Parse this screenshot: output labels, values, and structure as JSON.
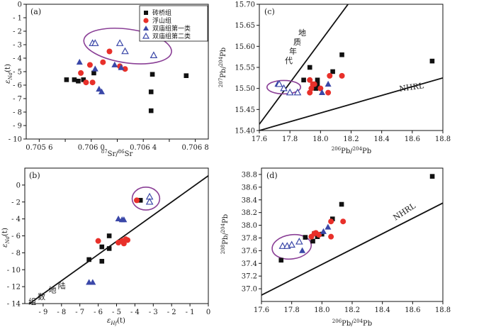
{
  "legend": {
    "items": [
      {
        "key": "zhuanqiao",
        "label": "砖桥组",
        "marker": "filled-square",
        "color": "#111111"
      },
      {
        "key": "fushan",
        "label": "浮山组",
        "marker": "filled-circle",
        "color": "#e8302a"
      },
      {
        "key": "sm1",
        "label": "双庙组第一类",
        "marker": "filled-triangle",
        "color": "#3a47a8"
      },
      {
        "key": "sm2",
        "label": "双庙组第二类",
        "marker": "open-triangle",
        "color": "#3a47a8"
      }
    ]
  },
  "chart_data": [
    {
      "id": "a",
      "type": "scatter",
      "panel_label": "(a)",
      "xlabel": "87Sr/86Sr",
      "xlabel_parts": {
        "sup1": "87",
        "base1": "Sr/",
        "sup2": "86",
        "base2": "Sr"
      },
      "ylabel": "ε",
      "ylabel_suffix": "(t)",
      "xlim": [
        0.7055,
        0.7069
      ],
      "ylim": [
        -10,
        0
      ],
      "xticks": [
        0.7056,
        0.7058,
        0.706,
        0.7062,
        0.7064,
        0.7066,
        0.7068
      ],
      "xtick_labels": [
        "0.705 6",
        "",
        "0.706 0",
        "",
        "0.706 4",
        "",
        "0.706 8"
      ],
      "yticks": [
        0,
        -1,
        -2,
        -3,
        -4,
        -5,
        -6,
        -7,
        -8,
        -9,
        -10
      ],
      "ytick_labels": [
        "0",
        "- 1",
        "- 2",
        "- 3",
        "- 4",
        "- 5",
        "- 6",
        "- 7",
        "- 8",
        "- 9",
        "- 10"
      ],
      "series": [
        {
          "name": "砖桥组",
          "marker": "filled-square",
          "points": [
            [
              0.70581,
              -5.6
            ],
            [
              0.70587,
              -5.6
            ],
            [
              0.7059,
              -5.7
            ],
            [
              0.70594,
              -5.6
            ],
            [
              0.70602,
              -5.1
            ],
            [
              0.70646,
              -6.5
            ],
            [
              0.70647,
              -5.2
            ],
            [
              0.70646,
              -7.9
            ],
            [
              0.70673,
              -5.3
            ]
          ]
        },
        {
          "name": "浮山组",
          "marker": "filled-circle",
          "points": [
            [
              0.70592,
              -5.1
            ],
            [
              0.70596,
              -5.8
            ],
            [
              0.70599,
              -4.5
            ],
            [
              0.70601,
              -5.8
            ],
            [
              0.70609,
              -4.3
            ],
            [
              0.70614,
              -3.5
            ],
            [
              0.70622,
              -4.6
            ],
            [
              0.70626,
              -4.8
            ]
          ]
        },
        {
          "name": "双庙组第一类",
          "marker": "filled-triangle",
          "points": [
            [
              0.70591,
              -4.3
            ],
            [
              0.70603,
              -4.8
            ],
            [
              0.70606,
              -6.3
            ],
            [
              0.70608,
              -6.5
            ],
            [
              0.70618,
              -4.5
            ],
            [
              0.70623,
              -4.7
            ]
          ]
        },
        {
          "name": "双庙组第二类",
          "marker": "open-triangle",
          "points": [
            [
              0.70601,
              -2.9
            ],
            [
              0.70603,
              -2.9
            ],
            [
              0.70622,
              -2.9
            ],
            [
              0.70626,
              -3.5
            ],
            [
              0.70648,
              -3.8
            ]
          ]
        }
      ],
      "highlight_ellipse": {
        "cx": 0.70628,
        "cy": -3.1,
        "rx": 0.00034,
        "ry": 1.25,
        "rotate_deg": 8
      }
    },
    {
      "id": "c",
      "type": "scatter",
      "panel_label": "(c)",
      "xlabel": "206Pb/204Pb",
      "xlabel_parts": {
        "sup1": "206",
        "base1": "Pb/",
        "sup2": "204",
        "base2": "Pb"
      },
      "ylabel": "207Pb/204Pb",
      "ylabel_parts": {
        "sup1": "207",
        "base1": "Pb/",
        "sup2": "204",
        "base2": "Pb"
      },
      "xlim": [
        17.6,
        18.8
      ],
      "ylim": [
        15.4,
        15.7
      ],
      "xticks": [
        17.6,
        17.8,
        18.0,
        18.2,
        18.4,
        18.6,
        18.8
      ],
      "xtick_labels": [
        "17.6",
        "17.8",
        "18.0",
        "18.2",
        "18.4",
        "18.6",
        "18.8"
      ],
      "yticks": [
        15.4,
        15.45,
        15.5,
        15.55,
        15.6,
        15.65,
        15.7
      ],
      "ytick_labels": [
        "15.40",
        "15.45",
        "15.50",
        "15.55",
        "15.60",
        "15.65",
        "15.70"
      ],
      "series": [
        {
          "name": "砖桥组",
          "marker": "filled-square",
          "points": [
            [
              17.89,
              15.52
            ],
            [
              17.93,
              15.55
            ],
            [
              17.97,
              15.5
            ],
            [
              17.98,
              15.51
            ],
            [
              17.98,
              15.52
            ],
            [
              18.08,
              15.54
            ],
            [
              18.14,
              15.58
            ],
            [
              18.73,
              15.565
            ]
          ]
        },
        {
          "name": "浮山组",
          "marker": "filled-circle",
          "points": [
            [
              17.93,
              15.49
            ],
            [
              17.94,
              15.5
            ],
            [
              17.95,
              15.51
            ],
            [
              17.96,
              15.51
            ],
            [
              18.0,
              15.5
            ],
            [
              18.05,
              15.49
            ],
            [
              18.06,
              15.53
            ],
            [
              18.14,
              15.53
            ],
            [
              17.93,
              15.52
            ]
          ]
        },
        {
          "name": "双庙组第一类",
          "marker": "filled-triangle",
          "points": [
            [
              17.72,
              15.51
            ],
            [
              18.01,
              15.49
            ],
            [
              18.05,
              15.51
            ]
          ]
        },
        {
          "name": "双庙组第二类",
          "marker": "open-triangle",
          "points": [
            [
              17.73,
              15.51
            ],
            [
              17.76,
              15.5
            ],
            [
              17.8,
              15.49
            ],
            [
              17.85,
              15.49
            ]
          ]
        }
      ],
      "reference_lines": [
        {
          "label": "地质年代",
          "p1": [
            17.6,
            15.415
          ],
          "p2": [
            18.18,
            15.7
          ]
        },
        {
          "label": "NHRL",
          "p1": [
            17.6,
            15.4
          ],
          "p2": [
            18.8,
            15.525
          ]
        }
      ],
      "highlight_ellipse": {
        "cx": 17.76,
        "cy": 15.503,
        "rx": 0.11,
        "ry": 0.016,
        "rotate_deg": 0
      }
    },
    {
      "id": "b",
      "type": "scatter",
      "panel_label": "(b)",
      "xlabel": "ε",
      "xlabel_suffix": "(t)",
      "ylabel": "ε",
      "ylabel_suffix": "(t)",
      "xlim": [
        -10,
        0
      ],
      "ylim": [
        -14,
        2
      ],
      "xticks": [
        -9,
        -8,
        -7,
        -6,
        -5,
        -4,
        -3,
        -2,
        -1,
        0
      ],
      "xtick_labels": [
        "- 9",
        "- 8",
        "- 7",
        "- 6",
        "- 5",
        "- 4",
        "- 3",
        "- 2",
        "- 1",
        "0"
      ],
      "yticks": [
        0,
        -2,
        -4,
        -6,
        -8,
        -10,
        -12,
        -14
      ],
      "ytick_labels": [
        "0",
        "- 2",
        "- 4",
        "- 6",
        "- 8",
        "- 10",
        "- 12",
        "- 14"
      ],
      "series": [
        {
          "name": "砖桥组",
          "marker": "filled-square",
          "points": [
            [
              -6.5,
              -8.8
            ],
            [
              -5.8,
              -9
            ],
            [
              -5.8,
              -7.3
            ],
            [
              -5.4,
              -7.5
            ],
            [
              -5.4,
              -6
            ],
            [
              -3.7,
              -1.8
            ]
          ]
        },
        {
          "name": "浮山组",
          "marker": "filled-circle",
          "points": [
            [
              -6,
              -6.6
            ],
            [
              -4.9,
              -6.8
            ],
            [
              -4.7,
              -6.6
            ],
            [
              -4.6,
              -6.9
            ],
            [
              -4.5,
              -6.4
            ],
            [
              -4.4,
              -6.5
            ],
            [
              -3.9,
              -1.8
            ]
          ]
        },
        {
          "name": "双庙组第一类",
          "marker": "filled-triangle",
          "points": [
            [
              -6.5,
              -11.5
            ],
            [
              -6.3,
              -11.5
            ],
            [
              -4.9,
              -4
            ],
            [
              -4.7,
              -4.1
            ],
            [
              -4.6,
              -4.1
            ]
          ]
        },
        {
          "name": "双庙组第二类",
          "marker": "open-triangle",
          "points": [
            [
              -3.2,
              -1.4
            ],
            [
              -3.2,
              -2
            ]
          ]
        }
      ],
      "reference_lines": [
        {
          "label": "陆地地幔组数",
          "p1": [
            -10,
            -14.4
          ],
          "p2": [
            0,
            1.1
          ]
        }
      ],
      "annotations": [
        {
          "text": "陆",
          "x": -8.2,
          "y": -12.2
        },
        {
          "text": "地",
          "x": -8.7,
          "y": -12.7
        },
        {
          "text": "数",
          "x": -9.3,
          "y": -13.5
        },
        {
          "text": "组",
          "x": -9.8,
          "y": -14.1
        }
      ],
      "highlight_ellipse": {
        "cx": -3.4,
        "cy": -1.6,
        "rx": 0.75,
        "ry": 1.35,
        "rotate_deg": 0
      }
    },
    {
      "id": "d",
      "type": "scatter",
      "panel_label": "(d)",
      "xlabel": "206Pb/204Pb",
      "xlabel_parts": {
        "sup1": "206",
        "base1": "Pb/",
        "sup2": "204",
        "base2": "Pb"
      },
      "ylabel": "208Pb/204Pb",
      "ylabel_parts": {
        "sup1": "208",
        "base1": "Pb/",
        "sup2": "204",
        "base2": "Pb"
      },
      "xlim": [
        17.6,
        18.8
      ],
      "ylim": [
        36.8,
        38.9
      ],
      "xticks": [
        17.6,
        17.8,
        18.0,
        18.2,
        18.4,
        18.6,
        18.8
      ],
      "xtick_labels": [
        "17.6",
        "17.8",
        "18.0",
        "18.2",
        "18.4",
        "18.6",
        "18.8"
      ],
      "yticks": [
        37.0,
        37.2,
        37.4,
        37.6,
        37.8,
        38.0,
        38.2,
        38.4,
        38.6,
        38.8
      ],
      "ytick_labels": [
        "37.0",
        "37.2",
        "37.4",
        "37.6",
        "37.8",
        "38.0",
        "38.2",
        "38.4",
        "38.6",
        "38.8"
      ],
      "series": [
        {
          "name": "砖桥组",
          "marker": "filled-square",
          "points": [
            [
              17.73,
              37.45
            ],
            [
              17.89,
              37.81
            ],
            [
              17.94,
              37.75
            ],
            [
              17.95,
              37.87
            ],
            [
              17.97,
              37.82
            ],
            [
              18.0,
              37.86
            ],
            [
              18.07,
              38.1
            ],
            [
              18.13,
              38.33
            ],
            [
              18.73,
              38.77
            ]
          ]
        },
        {
          "name": "浮山组",
          "marker": "filled-circle",
          "points": [
            [
              17.93,
              37.82
            ],
            [
              17.95,
              37.87
            ],
            [
              17.96,
              37.88
            ],
            [
              17.98,
              37.85
            ],
            [
              18.06,
              37.82
            ],
            [
              18.06,
              38.06
            ],
            [
              18.14,
              38.06
            ]
          ]
        },
        {
          "name": "双庙组第一类",
          "marker": "filled-triangle",
          "points": [
            [
              17.87,
              37.6
            ],
            [
              18.01,
              37.9
            ],
            [
              18.04,
              37.97
            ]
          ]
        },
        {
          "name": "双庙组第二类",
          "marker": "open-triangle",
          "points": [
            [
              17.74,
              37.67
            ],
            [
              17.77,
              37.67
            ],
            [
              17.8,
              37.69
            ],
            [
              17.85,
              37.74
            ]
          ]
        }
      ],
      "reference_lines": [
        {
          "label": "NHRL",
          "p1": [
            17.6,
            36.9
          ],
          "p2": [
            18.8,
            38.35
          ]
        }
      ],
      "highlight_ellipse": {
        "cx": 17.8,
        "cy": 37.66,
        "rx": 0.13,
        "ry": 0.19,
        "rotate_deg": -8
      }
    }
  ]
}
